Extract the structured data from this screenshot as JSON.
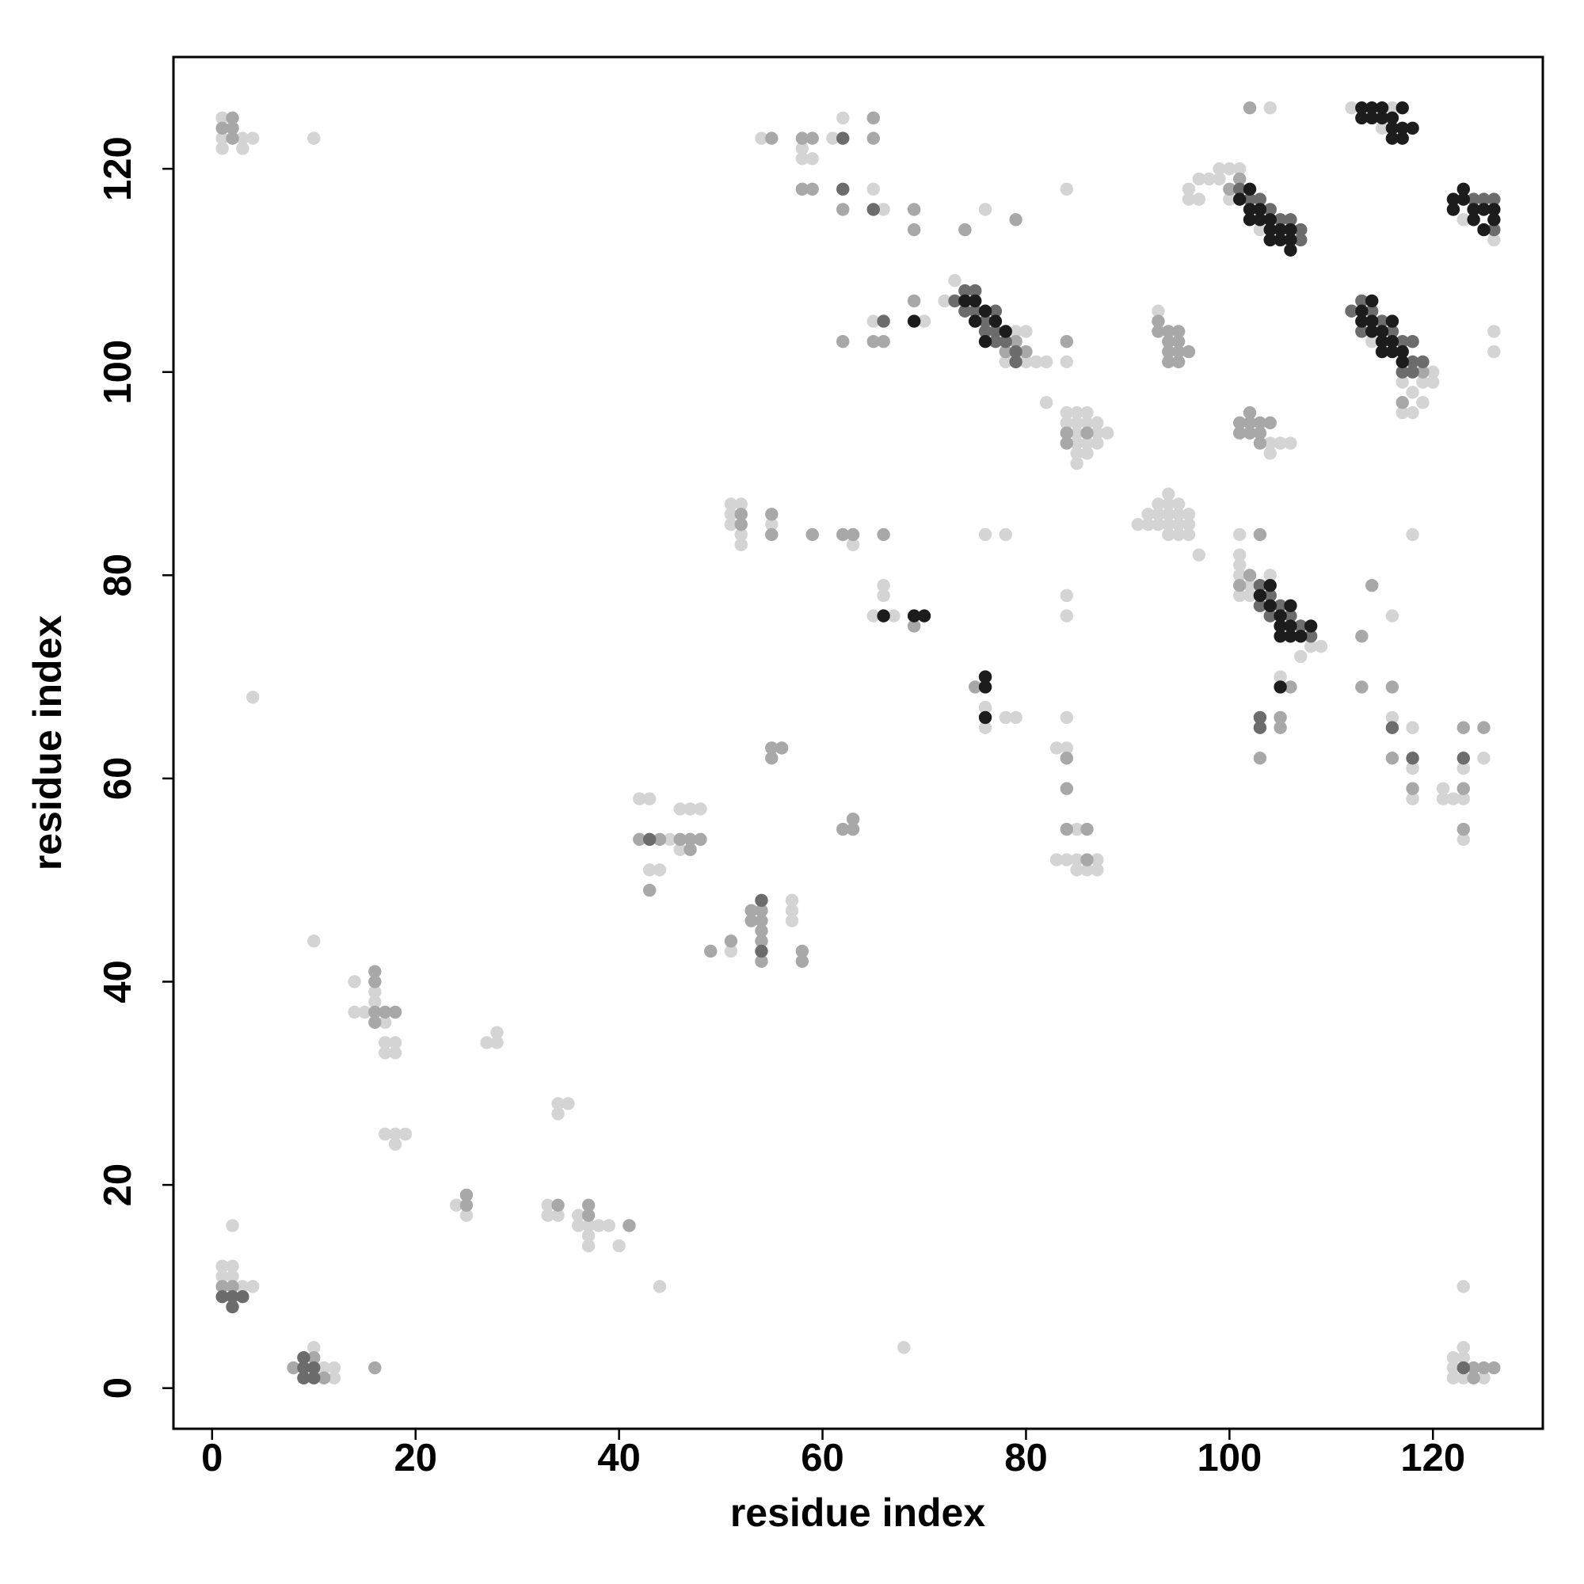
{
  "chart_data": {
    "type": "scatter",
    "xlabel": "residue index",
    "ylabel": "residue index",
    "xlim": [
      -3.8,
      130.8
    ],
    "ylim": [
      -4,
      131
    ],
    "xticks": [
      0,
      20,
      40,
      60,
      80,
      100,
      120
    ],
    "yticks": [
      0,
      20,
      40,
      60,
      80,
      100,
      120
    ],
    "grid": false,
    "series": [
      {
        "color": "#d4d4d4",
        "x": [
          1,
          2,
          1,
          2,
          3,
          4,
          2,
          10,
          11,
          12,
          12,
          1,
          1,
          1,
          3,
          4,
          3,
          10,
          4,
          10,
          14,
          14,
          15,
          16,
          16,
          17,
          17,
          18,
          18,
          17,
          18,
          17,
          19,
          18,
          27,
          28,
          28,
          34,
          35,
          34,
          24,
          25,
          33,
          33,
          34,
          36,
          37,
          37,
          38,
          39,
          40,
          44,
          42,
          43,
          43,
          44,
          45,
          46,
          47,
          48,
          46,
          51,
          57,
          57,
          57,
          51,
          52,
          51,
          51,
          52,
          52,
          55,
          63,
          66,
          66,
          65,
          67,
          54,
          58,
          58,
          59,
          61,
          62,
          65,
          66,
          65,
          70,
          73,
          72,
          78,
          79,
          80,
          80,
          81,
          82,
          76,
          82,
          84,
          84,
          84,
          85,
          86,
          84,
          85,
          86,
          87,
          85,
          87,
          88,
          85,
          86,
          87,
          85,
          86,
          85,
          91,
          92,
          92,
          93,
          93,
          93,
          94,
          94,
          94,
          94,
          94,
          95,
          95,
          95,
          95,
          96,
          96,
          96,
          97,
          93,
          76,
          78,
          76,
          76,
          78,
          79,
          84,
          84,
          84,
          83,
          84,
          85,
          83,
          84,
          85,
          87,
          85,
          86,
          87,
          101,
          101,
          101,
          101,
          102,
          101,
          102,
          104,
          107,
          108,
          109,
          105,
          104,
          105,
          106,
          104,
          96,
          96,
          97,
          97,
          98,
          99,
          100,
          101,
          99,
          100,
          103,
          104,
          114,
          117,
          118,
          118,
          117,
          119,
          119,
          120,
          120,
          112,
          115,
          116,
          123,
          126,
          126,
          126,
          116,
          116,
          118,
          118,
          118,
          118,
          121,
          121,
          122,
          123,
          123,
          123,
          125,
          123,
          122,
          122,
          122,
          123,
          123,
          123,
          125,
          68,
          37,
          36
        ],
        "values": [
          12,
          12,
          11,
          11,
          10,
          10,
          16,
          4,
          2,
          2,
          1,
          125,
          123,
          122,
          122,
          123,
          123,
          123,
          68,
          44,
          40,
          37,
          37,
          38,
          39,
          36,
          33,
          33,
          34,
          34,
          25,
          25,
          25,
          24,
          34,
          34,
          35,
          28,
          28,
          27,
          18,
          17,
          18,
          17,
          17,
          17,
          15,
          14,
          16,
          16,
          14,
          10,
          58,
          58,
          51,
          51,
          54,
          57,
          57,
          57,
          53,
          43,
          48,
          47,
          46,
          87,
          87,
          86,
          85,
          84,
          83,
          85,
          83,
          79,
          78,
          76,
          76,
          123,
          122,
          121,
          121,
          123,
          125,
          118,
          116,
          105,
          105,
          109,
          107,
          101,
          104,
          104,
          101,
          101,
          101,
          116,
          97,
          118,
          101,
          96,
          96,
          96,
          95,
          95,
          95,
          95,
          94,
          94,
          94,
          93,
          93,
          93,
          92,
          92,
          91,
          85,
          86,
          85,
          87,
          86,
          85,
          88,
          87,
          86,
          85,
          84,
          87,
          86,
          85,
          84,
          86,
          85,
          84,
          82,
          106,
          84,
          84,
          67,
          65,
          66,
          66,
          78,
          76,
          66,
          63,
          63,
          55,
          52,
          52,
          52,
          52,
          51,
          51,
          51,
          84,
          82,
          81,
          80,
          79,
          78,
          78,
          80,
          72,
          73,
          73,
          70,
          93,
          93,
          93,
          92,
          118,
          117,
          119,
          117,
          119,
          120,
          120,
          120,
          119,
          117,
          114,
          126,
          103,
          99,
          98,
          96,
          96,
          97,
          99,
          100,
          99,
          126,
          124,
          126,
          115,
          113,
          104,
          102,
          76,
          66,
          65,
          61,
          58,
          84,
          59,
          58,
          58,
          61,
          58,
          54,
          62,
          10,
          3,
          2,
          1,
          1,
          4,
          3,
          1,
          4,
          16,
          16
        ]
      },
      {
        "color": "#a8a8a8",
        "x": [
          1,
          2,
          8,
          11,
          10,
          16,
          2,
          2,
          2,
          1,
          16,
          16,
          16,
          17,
          18,
          16,
          25,
          25,
          34,
          37,
          37,
          41,
          42,
          43,
          46,
          47,
          48,
          47,
          44,
          49,
          51,
          53,
          53,
          54,
          54,
          54,
          54,
          54,
          58,
          58,
          55,
          56,
          55,
          52,
          52,
          55,
          55,
          59,
          62,
          63,
          62,
          63,
          63,
          66,
          69,
          55,
          58,
          59,
          58,
          59,
          62,
          65,
          65,
          69,
          69,
          62,
          65,
          66,
          69,
          78,
          79,
          80,
          74,
          79,
          84,
          84,
          86,
          84,
          93,
          94,
          93,
          94,
          94,
          95,
          95,
          95,
          95,
          96,
          94,
          75,
          84,
          84,
          84,
          86,
          86,
          101,
          102,
          103,
          106,
          103,
          105,
          105,
          101,
          102,
          102,
          103,
          104,
          101,
          102,
          103,
          103,
          101,
          100,
          102,
          117,
          119,
          114,
          113,
          113,
          116,
          116,
          118,
          123,
          123,
          123,
          125,
          124,
          124,
          125,
          126
        ],
        "values": [
          10,
          10,
          2,
          1,
          3,
          2,
          125,
          124,
          123,
          124,
          41,
          40,
          37,
          37,
          37,
          36,
          19,
          18,
          18,
          18,
          17,
          16,
          54,
          49,
          54,
          54,
          54,
          53,
          54,
          43,
          44,
          47,
          46,
          47,
          46,
          45,
          44,
          42,
          43,
          42,
          63,
          63,
          62,
          86,
          85,
          86,
          84,
          84,
          84,
          84,
          55,
          55,
          56,
          84,
          75,
          123,
          123,
          123,
          118,
          118,
          116,
          125,
          123,
          116,
          114,
          103,
          103,
          103,
          107,
          102,
          103,
          102,
          114,
          115,
          103,
          94,
          94,
          93,
          104,
          104,
          105,
          103,
          102,
          104,
          103,
          102,
          101,
          102,
          101,
          69,
          62,
          59,
          55,
          55,
          52,
          79,
          80,
          84,
          69,
          62,
          66,
          65,
          95,
          95,
          96,
          95,
          95,
          94,
          94,
          94,
          93,
          119,
          118,
          126,
          97,
          100,
          79,
          74,
          69,
          69,
          62,
          59,
          65,
          59,
          55,
          65,
          2,
          1,
          2,
          2
        ]
      },
      {
        "color": "#6c6c6c",
        "x": [
          1,
          2,
          3,
          2,
          9,
          9,
          10,
          10,
          9,
          54,
          54,
          43,
          62,
          62,
          65,
          66,
          73,
          74,
          74,
          75,
          75,
          76,
          76,
          77,
          77,
          77,
          78,
          79,
          79,
          103,
          103,
          104,
          104,
          105,
          106,
          107,
          108,
          103,
          103,
          101,
          102,
          103,
          104,
          105,
          106,
          107,
          107,
          112,
          113,
          113,
          114,
          115,
          116,
          117,
          118,
          118,
          119,
          117,
          118,
          124,
          126,
          126,
          125,
          116,
          118,
          123,
          123
        ],
        "values": [
          9,
          9,
          9,
          8,
          3,
          2,
          2,
          1,
          1,
          48,
          43,
          54,
          123,
          118,
          116,
          105,
          107,
          108,
          106,
          108,
          106,
          105,
          104,
          106,
          104,
          103,
          103,
          102,
          101,
          79,
          77,
          78,
          76,
          77,
          76,
          75,
          74,
          66,
          65,
          118,
          117,
          117,
          116,
          115,
          115,
          114,
          113,
          106,
          107,
          104,
          106,
          105,
          104,
          103,
          103,
          100,
          101,
          100,
          101,
          117,
          117,
          114,
          117,
          65,
          62,
          62,
          2
        ]
      },
      {
        "color": "#1c1c1c",
        "x": [
          66,
          69,
          70,
          69,
          74,
          75,
          75,
          76,
          76,
          77,
          78,
          76,
          76,
          76,
          103,
          104,
          104,
          105,
          105,
          105,
          106,
          106,
          106,
          107,
          108,
          105,
          101,
          102,
          102,
          102,
          103,
          103,
          104,
          104,
          104,
          105,
          105,
          106,
          106,
          106,
          113,
          113,
          114,
          114,
          114,
          115,
          115,
          115,
          116,
          116,
          116,
          117,
          117,
          113,
          114,
          114,
          115,
          115,
          116,
          116,
          116,
          117,
          117,
          117,
          118,
          113,
          122,
          122,
          123,
          124,
          124,
          125,
          126,
          125,
          123,
          126
        ],
        "values": [
          76,
          76,
          76,
          105,
          107,
          107,
          105,
          106,
          103,
          105,
          104,
          70,
          69,
          66,
          78,
          79,
          77,
          76,
          75,
          74,
          77,
          75,
          74,
          74,
          75,
          69,
          117,
          118,
          116,
          115,
          116,
          115,
          115,
          114,
          113,
          114,
          113,
          114,
          112,
          113,
          106,
          105,
          107,
          105,
          104,
          104,
          103,
          102,
          105,
          103,
          102,
          102,
          101,
          126,
          126,
          125,
          126,
          125,
          125,
          124,
          123,
          126,
          124,
          123,
          124,
          125,
          117,
          116,
          117,
          116,
          115,
          116,
          115,
          114,
          118,
          116
        ]
      }
    ]
  }
}
